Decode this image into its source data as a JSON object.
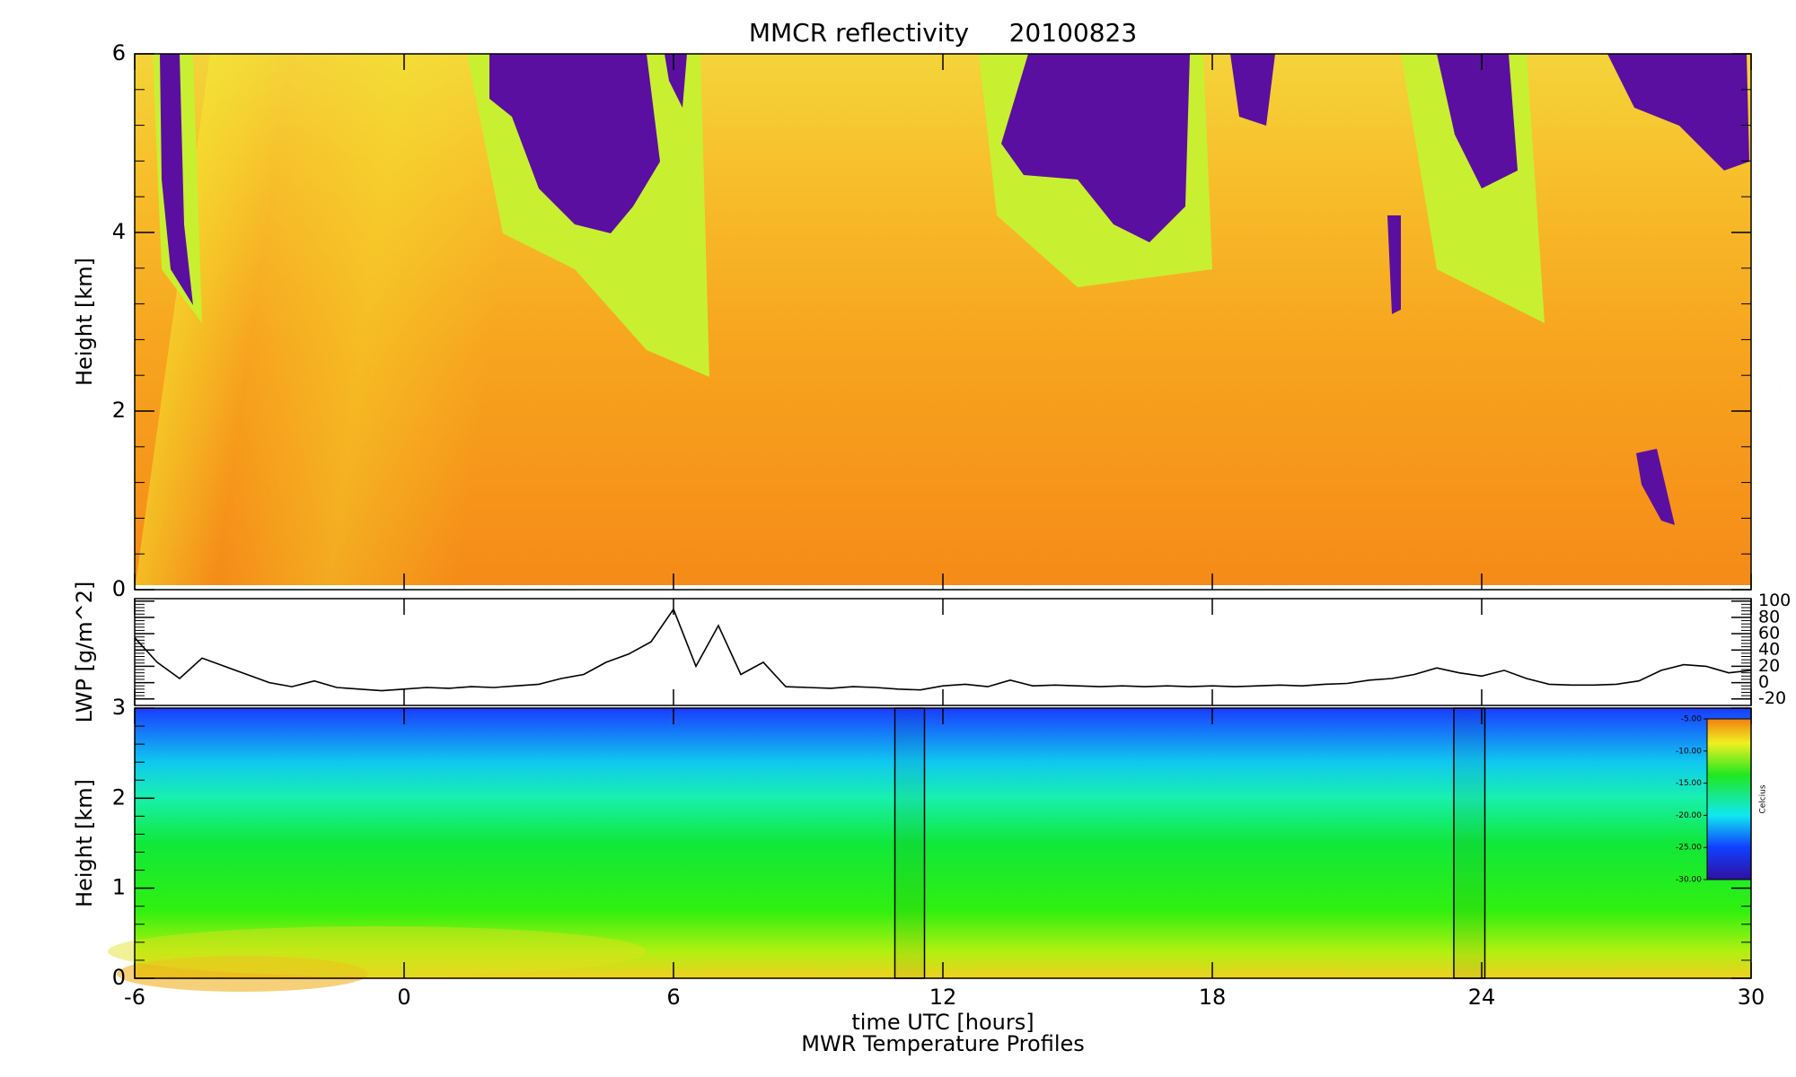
{
  "chart_data": [
    {
      "type": "heatmap",
      "title": "MMCR reflectivity     20100823",
      "ylabel": "Height [km]",
      "ylim": [
        0,
        6
      ],
      "yticks": [
        0,
        2,
        4,
        6
      ],
      "xlim": [
        -6,
        30
      ]
    },
    {
      "type": "line",
      "ylabel": "LWP [g/m^2]",
      "color": "#000000",
      "tick_side": "right",
      "xlim": [
        -6,
        30
      ],
      "ylim": [
        -28,
        103
      ],
      "yticks": [
        -20,
        0,
        20,
        40,
        60,
        80,
        100
      ],
      "x": [
        -6,
        -5.5,
        -5,
        -4.5,
        -4,
        -3.5,
        -3,
        -2.5,
        -2,
        -1.5,
        -1,
        -0.5,
        0,
        0.5,
        1,
        1.5,
        2,
        2.5,
        3,
        3.5,
        4,
        4.5,
        5,
        5.5,
        6,
        6.5,
        7,
        7.5,
        8,
        8.5,
        9,
        9.5,
        10,
        10.5,
        11,
        11.5,
        12,
        12.5,
        13,
        13.5,
        14,
        14.5,
        15,
        15.5,
        16,
        16.5,
        17,
        17.5,
        18,
        18.5,
        19,
        19.5,
        20,
        20.5,
        21,
        21.5,
        22,
        22.5,
        23,
        23.5,
        24,
        24.5,
        25,
        25.5,
        26,
        26.5,
        27,
        27.5,
        28,
        28.5,
        29,
        29.5,
        30
      ],
      "values": [
        55,
        25,
        5,
        30,
        20,
        10,
        0,
        -5,
        2,
        -6,
        -8,
        -10,
        -8,
        -6,
        -7,
        -5,
        -6,
        -4,
        -2,
        5,
        10,
        25,
        35,
        50,
        90,
        20,
        70,
        10,
        25,
        -5,
        -6,
        -7,
        -5,
        -6,
        -8,
        -9,
        -4,
        -2,
        -5,
        3,
        -4,
        -3,
        -4,
        -5,
        -4,
        -5,
        -4,
        -5,
        -4,
        -5,
        -4,
        -3,
        -4,
        -2,
        -1,
        3,
        5,
        10,
        18,
        12,
        8,
        15,
        5,
        -2,
        -3,
        -3,
        -2,
        2,
        15,
        22,
        20,
        12,
        15
      ]
    },
    {
      "type": "contour",
      "ylabel": "Height [km]",
      "xlabel": "time UTC [hours]",
      "caption": "MWR Temperature Profiles",
      "xlim": [
        -6,
        30
      ],
      "xticks": [
        -6,
        0,
        6,
        12,
        18,
        24,
        30
      ],
      "ylim": [
        0,
        3
      ],
      "yticks": [
        0,
        1,
        2,
        3
      ],
      "missing": [
        [
          10.93,
          11.59
        ],
        [
          23.38,
          24.07
        ]
      ],
      "colorbar": {
        "label": "Celcius",
        "lim": [
          -30,
          -5
        ],
        "ticks": [
          {
            "value": -5,
            "label": "-5.00"
          },
          {
            "value": -10,
            "label": "-10.00"
          },
          {
            "value": -15,
            "label": "-15.00"
          },
          {
            "value": -20,
            "label": "-20.00"
          },
          {
            "value": -25,
            "label": "-25.00"
          },
          {
            "value": -30,
            "label": "-30.00"
          }
        ]
      }
    }
  ]
}
